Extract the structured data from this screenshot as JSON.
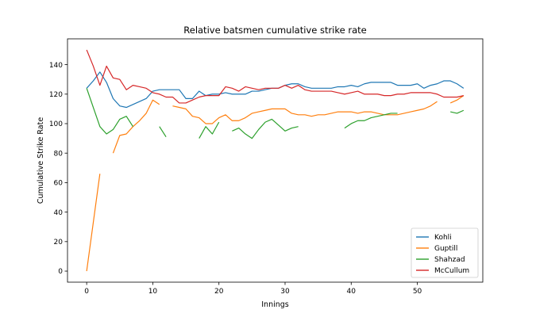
{
  "chart_data": {
    "type": "line",
    "title": "Relative batsmen cumulative strike rate",
    "xlabel": "Innings",
    "ylabel": "Cumulative Strike Rate",
    "xlim": [
      -2.9,
      59.9
    ],
    "ylim": [
      -7.5,
      157.5
    ],
    "xticks": [
      0,
      10,
      20,
      30,
      40,
      50
    ],
    "yticks": [
      0,
      20,
      40,
      60,
      80,
      100,
      120,
      140
    ],
    "grid": false,
    "legend_position": "lower-right",
    "series": [
      {
        "name": "Kohli",
        "color": "#1f77b4",
        "x": [
          0,
          1,
          2,
          3,
          4,
          5,
          6,
          7,
          8,
          9,
          10,
          11,
          12,
          13,
          14,
          15,
          16,
          17,
          18,
          19,
          20,
          21,
          22,
          23,
          24,
          25,
          26,
          27,
          28,
          29,
          30,
          31,
          32,
          33,
          34,
          35,
          36,
          37,
          38,
          39,
          40,
          41,
          42,
          43,
          44,
          45,
          46,
          47,
          48,
          49,
          50,
          51,
          52,
          53,
          54,
          55,
          56,
          57
        ],
        "y": [
          124,
          129,
          135,
          128,
          117,
          112,
          111,
          113,
          115,
          117,
          122,
          123,
          123,
          123,
          123,
          117,
          117,
          122,
          119,
          120,
          120,
          121,
          120,
          120,
          120,
          122,
          122,
          123,
          124,
          124,
          126,
          127,
          127,
          125,
          124,
          124,
          124,
          124,
          125,
          125,
          126,
          125,
          127,
          128,
          128,
          128,
          128,
          126,
          126,
          126,
          127,
          124,
          126,
          127,
          129,
          129,
          127,
          124
        ]
      },
      {
        "name": "Guptill",
        "color": "#ff7f0e",
        "x": [
          0,
          1,
          2,
          null,
          4,
          5,
          6,
          7,
          8,
          9,
          10,
          11,
          null,
          13,
          14,
          15,
          16,
          17,
          18,
          19,
          20,
          21,
          22,
          23,
          24,
          25,
          26,
          27,
          28,
          29,
          30,
          31,
          32,
          33,
          34,
          35,
          36,
          37,
          38,
          39,
          40,
          41,
          42,
          43,
          44,
          45,
          46,
          47,
          48,
          49,
          50,
          51,
          52,
          53,
          null,
          55,
          56,
          57
        ],
        "y": [
          0,
          33,
          66,
          null,
          80,
          92,
          93,
          98,
          102,
          107,
          116,
          113,
          null,
          112,
          111,
          110,
          105,
          104,
          100,
          100,
          104,
          106,
          102,
          102,
          104,
          107,
          108,
          109,
          110,
          110,
          110,
          107,
          106,
          106,
          105,
          106,
          106,
          107,
          108,
          108,
          108,
          107,
          108,
          108,
          107,
          106,
          106,
          106,
          107,
          108,
          109,
          110,
          112,
          115,
          null,
          114,
          116,
          119
        ]
      },
      {
        "name": "Shahzad",
        "color": "#2ca02c",
        "x": [
          0,
          1,
          2,
          3,
          4,
          5,
          6,
          7,
          null,
          11,
          12,
          null,
          17,
          18,
          19,
          20,
          null,
          22,
          23,
          24,
          25,
          26,
          27,
          28,
          29,
          30,
          31,
          32,
          null,
          39,
          40,
          41,
          42,
          43,
          44,
          45,
          46,
          47,
          null,
          55,
          56,
          57
        ],
        "y": [
          124,
          111,
          98,
          93,
          96,
          103,
          105,
          98,
          null,
          98,
          91,
          null,
          90,
          98,
          93,
          101,
          null,
          95,
          97,
          93,
          90,
          96,
          101,
          103,
          99,
          95,
          97,
          98,
          null,
          97,
          100,
          102,
          102,
          104,
          105,
          106,
          107,
          107,
          null,
          108,
          107,
          109
        ]
      },
      {
        "name": "McCullum",
        "color": "#d62728",
        "x": [
          0,
          1,
          2,
          3,
          4,
          5,
          6,
          7,
          8,
          9,
          10,
          11,
          12,
          13,
          14,
          15,
          16,
          17,
          18,
          19,
          20,
          21,
          22,
          23,
          24,
          25,
          26,
          27,
          28,
          29,
          30,
          31,
          32,
          33,
          34,
          35,
          36,
          37,
          38,
          39,
          40,
          41,
          42,
          43,
          44,
          45,
          46,
          47,
          48,
          49,
          50,
          51,
          52,
          53,
          54,
          55,
          56,
          57
        ],
        "y": [
          150,
          139,
          126,
          139,
          131,
          130,
          123,
          126,
          125,
          124,
          121,
          120,
          118,
          118,
          114,
          114,
          116,
          118,
          119,
          119,
          119,
          125,
          124,
          122,
          125,
          124,
          123,
          124,
          124,
          124,
          126,
          124,
          126,
          123,
          122,
          122,
          122,
          122,
          121,
          120,
          121,
          122,
          120,
          120,
          120,
          119,
          119,
          120,
          120,
          121,
          121,
          121,
          121,
          120,
          118,
          118,
          118,
          119
        ]
      }
    ]
  }
}
